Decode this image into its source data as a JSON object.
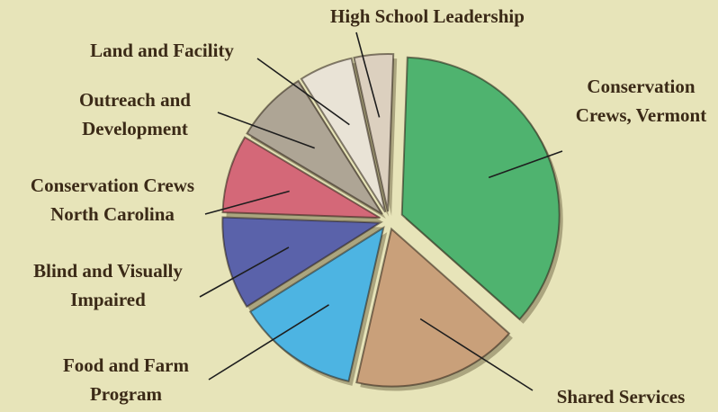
{
  "chart_data": {
    "type": "pie",
    "categories": [
      "Conservation Crews, Vermont",
      "Shared Services",
      "Food and Farm Program",
      "Blind and Visually Impaired",
      "Conservation Crews North Carolina",
      "Outreach and Development",
      "Land and Facility",
      "High School Leadership"
    ],
    "values": [
      36,
      17,
      12.5,
      9.5,
      8,
      7.5,
      5.5,
      4
    ],
    "colors": [
      "#4fb36f",
      "#c9a07a",
      "#4db4e2",
      "#5a62aa",
      "#d46878",
      "#aea595",
      "#e9e3d6",
      "#dcd0bf"
    ],
    "legend": false
  }
}
